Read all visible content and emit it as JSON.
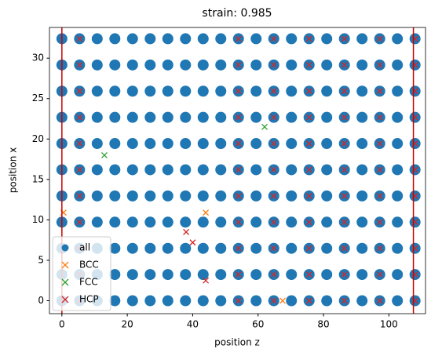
{
  "chart_data": {
    "type": "scatter",
    "title": "strain: 0.985",
    "xlabel": "position z",
    "ylabel": "position x",
    "xlim": [
      -3.8,
      111.2
    ],
    "ylim": [
      -1.6,
      33.8
    ],
    "xticks": [
      0,
      20,
      40,
      60,
      80,
      100
    ],
    "yticks": [
      0,
      5,
      10,
      15,
      20,
      25,
      30
    ],
    "legend": "lower left",
    "vlines": {
      "color": "#cc0000",
      "x": [
        0,
        107.5
      ]
    },
    "series": [
      {
        "name": "all",
        "color": "#1f77b4",
        "marker": "o",
        "x": [
          0,
          5.4,
          10.8,
          16.2,
          21.6,
          27,
          32.4,
          37.8,
          43.2,
          48.6,
          54,
          59.4,
          64.8,
          70.2,
          75.6,
          81,
          86.4,
          91.8,
          97.2,
          102.6,
          108,
          0,
          5.4,
          10.8,
          16.2,
          21.6,
          27,
          32.4,
          37.8,
          43.2,
          48.6,
          54,
          59.4,
          64.8,
          70.2,
          75.6,
          81,
          86.4,
          91.8,
          97.2,
          102.6,
          108,
          0,
          5.4,
          10.8,
          16.2,
          21.6,
          27,
          32.4,
          37.8,
          43.2,
          48.6,
          54,
          59.4,
          64.8,
          70.2,
          75.6,
          81,
          86.4,
          91.8,
          97.2,
          102.6,
          108,
          0,
          5.4,
          10.8,
          16.2,
          21.6,
          27,
          32.4,
          37.8,
          43.2,
          48.6,
          54,
          59.4,
          64.8,
          70.2,
          75.6,
          81,
          86.4,
          91.8,
          97.2,
          102.6,
          108,
          0,
          5.4,
          10.8,
          16.2,
          21.6,
          27,
          32.4,
          37.8,
          43.2,
          48.6,
          54,
          59.4,
          64.8,
          70.2,
          75.6,
          81,
          86.4,
          91.8,
          97.2,
          102.6,
          108,
          0,
          5.4,
          10.8,
          16.2,
          21.6,
          27,
          32.4,
          37.8,
          43.2,
          48.6,
          54,
          59.4,
          64.8,
          70.2,
          75.6,
          81,
          86.4,
          91.8,
          97.2,
          102.6,
          108,
          0,
          5.4,
          10.8,
          16.2,
          21.6,
          27,
          32.4,
          37.8,
          43.2,
          48.6,
          54,
          59.4,
          64.8,
          70.2,
          75.6,
          81,
          86.4,
          91.8,
          97.2,
          102.6,
          108,
          0,
          5.4,
          10.8,
          16.2,
          21.6,
          27,
          32.4,
          37.8,
          43.2,
          48.6,
          54,
          59.4,
          64.8,
          70.2,
          75.6,
          81,
          86.4,
          91.8,
          97.2,
          102.6,
          108,
          0,
          5.4,
          10.8,
          16.2,
          21.6,
          27,
          32.4,
          37.8,
          43.2,
          48.6,
          54,
          59.4,
          64.8,
          70.2,
          75.6,
          81,
          86.4,
          91.8,
          97.2,
          102.6,
          108,
          0,
          5.4,
          10.8,
          16.2,
          21.6,
          27,
          32.4,
          37.8,
          43.2,
          48.6,
          54,
          59.4,
          64.8,
          70.2,
          75.6,
          81,
          86.4,
          91.8,
          97.2,
          102.6,
          108,
          0,
          5.4,
          10.8,
          16.2,
          21.6,
          27,
          32.4,
          37.8,
          43.2,
          48.6,
          54,
          59.4,
          64.8,
          70.2,
          75.6,
          81,
          86.4,
          91.8,
          97.2,
          102.6,
          108
        ],
        "y": [
          0,
          0,
          0,
          0,
          0,
          0,
          0,
          0,
          0,
          0,
          0,
          0,
          0,
          0,
          0,
          0,
          0,
          0,
          0,
          0,
          0,
          3.24,
          3.24,
          3.24,
          3.24,
          3.24,
          3.24,
          3.24,
          3.24,
          3.24,
          3.24,
          3.24,
          3.24,
          3.24,
          3.24,
          3.24,
          3.24,
          3.24,
          3.24,
          3.24,
          3.24,
          3.24,
          6.48,
          6.48,
          6.48,
          6.48,
          6.48,
          6.48,
          6.48,
          6.48,
          6.48,
          6.48,
          6.48,
          6.48,
          6.48,
          6.48,
          6.48,
          6.48,
          6.48,
          6.48,
          6.48,
          6.48,
          6.48,
          9.72,
          9.72,
          9.72,
          9.72,
          9.72,
          9.72,
          9.72,
          9.72,
          9.72,
          9.72,
          9.72,
          9.72,
          9.72,
          9.72,
          9.72,
          9.72,
          9.72,
          9.72,
          9.72,
          9.72,
          9.72,
          12.96,
          12.96,
          12.96,
          12.96,
          12.96,
          12.96,
          12.96,
          12.96,
          12.96,
          12.96,
          12.96,
          12.96,
          12.96,
          12.96,
          12.96,
          12.96,
          12.96,
          12.96,
          12.96,
          12.96,
          12.96,
          16.2,
          16.2,
          16.2,
          16.2,
          16.2,
          16.2,
          16.2,
          16.2,
          16.2,
          16.2,
          16.2,
          16.2,
          16.2,
          16.2,
          16.2,
          16.2,
          16.2,
          16.2,
          16.2,
          16.2,
          16.2,
          19.44,
          19.44,
          19.44,
          19.44,
          19.44,
          19.44,
          19.44,
          19.44,
          19.44,
          19.44,
          19.44,
          19.44,
          19.44,
          19.44,
          19.44,
          19.44,
          19.44,
          19.44,
          19.44,
          19.44,
          19.44,
          22.68,
          22.68,
          22.68,
          22.68,
          22.68,
          22.68,
          22.68,
          22.68,
          22.68,
          22.68,
          22.68,
          22.68,
          22.68,
          22.68,
          22.68,
          22.68,
          22.68,
          22.68,
          22.68,
          22.68,
          22.68,
          25.92,
          25.92,
          25.92,
          25.92,
          25.92,
          25.92,
          25.92,
          25.92,
          25.92,
          25.92,
          25.92,
          25.92,
          25.92,
          25.92,
          25.92,
          25.92,
          25.92,
          25.92,
          25.92,
          25.92,
          25.92,
          29.16,
          29.16,
          29.16,
          29.16,
          29.16,
          29.16,
          29.16,
          29.16,
          29.16,
          29.16,
          29.16,
          29.16,
          29.16,
          29.16,
          29.16,
          29.16,
          29.16,
          29.16,
          29.16,
          29.16,
          29.16,
          32.4,
          32.4,
          32.4,
          32.4,
          32.4,
          32.4,
          32.4,
          32.4,
          32.4,
          32.4,
          32.4,
          32.4,
          32.4,
          32.4,
          32.4,
          32.4,
          32.4,
          32.4,
          32.4,
          32.4,
          32.4
        ]
      },
      {
        "name": "BCC",
        "color": "#ff7f0e",
        "marker": "x",
        "x": [
          44,
          0.5,
          67.5
        ],
        "y": [
          10.9,
          10.9,
          0
        ]
      },
      {
        "name": "FCC",
        "color": "#2ca02c",
        "marker": "x",
        "x": [
          13,
          62
        ],
        "y": [
          18,
          21.5
        ]
      },
      {
        "name": "HCP",
        "color": "#d62728",
        "marker": "x",
        "x": [
          5.4,
          54,
          64.8,
          75.6,
          86.4,
          97.2,
          108,
          5.4,
          54,
          64.8,
          75.6,
          86.4,
          97.2,
          108,
          5.4,
          54,
          64.8,
          75.6,
          86.4,
          97.2,
          108,
          5.4,
          54,
          64.8,
          75.6,
          86.4,
          97.2,
          108,
          5.4,
          54,
          64.8,
          75.6,
          86.4,
          97.2,
          108,
          5.4,
          54,
          64.8,
          75.6,
          86.4,
          97.2,
          108,
          5.4,
          54,
          64.8,
          75.6,
          86.4,
          97.2,
          108,
          5.4,
          54,
          64.8,
          75.6,
          86.4,
          97.2,
          108,
          5.4,
          54,
          64.8,
          75.6,
          86.4,
          97.2,
          108,
          5.4,
          54,
          64.8,
          75.6,
          86.4,
          97.2,
          108,
          5.4,
          54,
          64.8,
          75.6,
          86.4,
          97.2,
          108,
          38,
          40,
          44
        ],
        "y": [
          0,
          0,
          0,
          0,
          0,
          0,
          0,
          3.24,
          3.24,
          3.24,
          3.24,
          3.24,
          3.24,
          3.24,
          6.48,
          6.48,
          6.48,
          6.48,
          6.48,
          6.48,
          6.48,
          9.72,
          9.72,
          9.72,
          9.72,
          9.72,
          9.72,
          9.72,
          12.96,
          12.96,
          12.96,
          12.96,
          12.96,
          12.96,
          12.96,
          16.2,
          16.2,
          16.2,
          16.2,
          16.2,
          16.2,
          16.2,
          19.44,
          19.44,
          19.44,
          19.44,
          19.44,
          19.44,
          19.44,
          22.68,
          22.68,
          22.68,
          22.68,
          22.68,
          22.68,
          22.68,
          25.92,
          25.92,
          25.92,
          25.92,
          25.92,
          25.92,
          25.92,
          29.16,
          29.16,
          29.16,
          29.16,
          29.16,
          29.16,
          29.16,
          32.4,
          32.4,
          32.4,
          32.4,
          32.4,
          32.4,
          32.4,
          8.5,
          7.2,
          2.5
        ]
      }
    ]
  }
}
